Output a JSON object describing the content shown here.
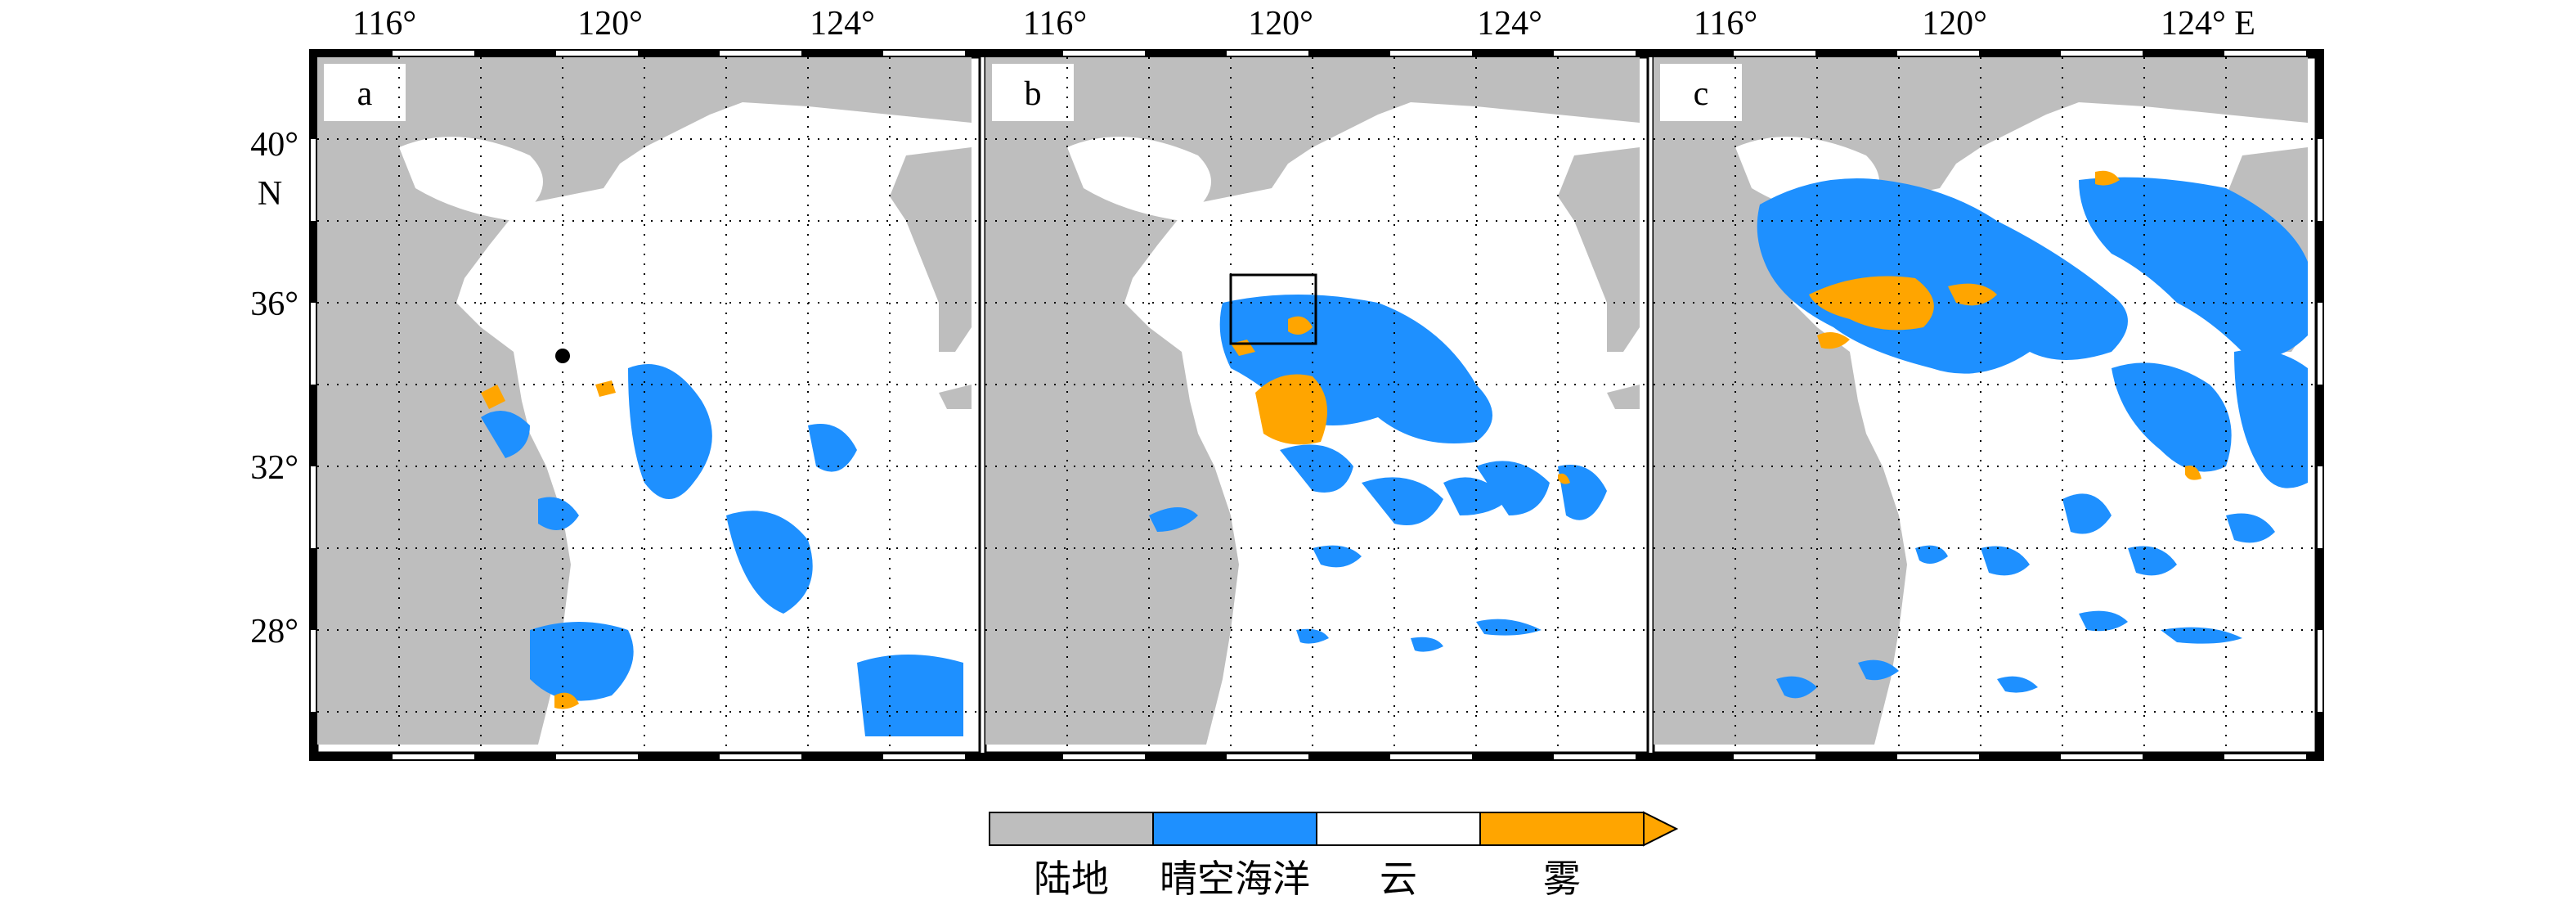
{
  "colors": {
    "land": "#BEBEBE",
    "clear_ocean": "#1E90FF",
    "cloud": "#FFFFFF",
    "fog": "#FFA500"
  },
  "x_ticks": [
    "116°",
    "120°",
    "124°"
  ],
  "x_ticks_last_panel": [
    "116°",
    "120°",
    "124° E"
  ],
  "y_ticks": [
    "40°",
    "36°",
    "32°",
    "28°"
  ],
  "y_unit": "N",
  "panels": [
    {
      "letter": "a"
    },
    {
      "letter": "b"
    },
    {
      "letter": "c"
    }
  ],
  "legend": [
    {
      "label": "陆地",
      "color": "#BEBEBE"
    },
    {
      "label": "晴空海洋",
      "color": "#1E90FF"
    },
    {
      "label": "云",
      "color": "#FFFFFF"
    },
    {
      "label": "雾",
      "color": "#FFA500"
    }
  ]
}
